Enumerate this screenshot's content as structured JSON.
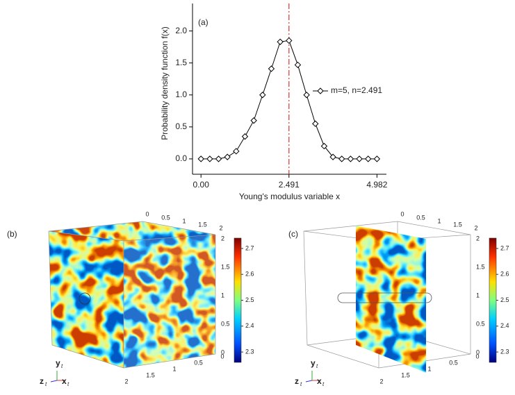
{
  "chart_data": {
    "type": "line",
    "panel_label": "(a)",
    "xlabel": "Young's modulus variable x",
    "ylabel": "Probability density function f(x)",
    "x": [
      0,
      0.2491,
      0.4982,
      0.7473,
      0.9964,
      1.2455,
      1.4946,
      1.7437,
      1.9928,
      2.2419,
      2.491,
      2.7401,
      2.9892,
      3.2383,
      3.4874,
      3.7365,
      3.9856,
      4.2347,
      4.4838,
      4.7329,
      4.982
    ],
    "series": [
      {
        "name": "m=5, n=2.491",
        "color": "#000000",
        "values": [
          0,
          0,
          0,
          0.03,
          0.12,
          0.35,
          0.6,
          1.0,
          1.41,
          1.83,
          1.85,
          1.47,
          1.0,
          0.55,
          0.2,
          0.03,
          0,
          0,
          0,
          0,
          0
        ]
      }
    ],
    "xlim": [
      -0.24,
      5.25
    ],
    "ylim": [
      -0.24,
      2.43
    ],
    "xticks": [
      {
        "value": 0,
        "label": "0.00"
      },
      2.491,
      4.982
    ],
    "yticks": [
      {
        "value": 0,
        "label": "0.0"
      },
      0.5,
      {
        "value": 1,
        "label": "1.0"
      },
      1.5,
      {
        "value": 2,
        "label": "2.0"
      }
    ],
    "vline": {
      "x": 2.491,
      "color": "#e03030"
    }
  },
  "panels": [
    {
      "label": "(b)",
      "style": "solid",
      "cube_ticks": [
        0,
        0.5,
        1,
        1.5,
        2
      ],
      "colorbar": {
        "lim": [
          2.26,
          2.74
        ],
        "ticks": [
          2.3,
          2.4,
          2.5,
          2.6,
          2.7
        ]
      }
    },
    {
      "label": "(c)",
      "style": "slice",
      "cube_ticks": [
        0,
        0.5,
        1,
        1.5,
        2
      ],
      "colorbar": {
        "lim": [
          2.26,
          2.74
        ],
        "ticks": [
          2.3,
          2.4,
          2.5,
          2.6,
          2.7
        ]
      }
    }
  ],
  "triad": {
    "y": "y",
    "z": "z",
    "x": "x",
    "subscript": "t"
  }
}
